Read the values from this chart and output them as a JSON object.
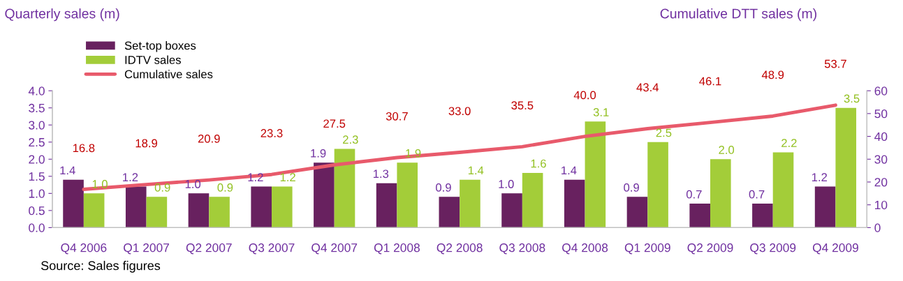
{
  "chart_data": {
    "type": "bar",
    "categories": [
      "Q4 2006",
      "Q1 2007",
      "Q2 2007",
      "Q3 2007",
      "Q4 2007",
      "Q1 2008",
      "Q2 2008",
      "Q3 2008",
      "Q4 2008",
      "Q1 2009",
      "Q2 2009",
      "Q3 2009",
      "Q4 2009"
    ],
    "series": [
      {
        "name": "Set-top boxes",
        "color": "#68215f",
        "values": [
          1.4,
          1.2,
          1.0,
          1.2,
          1.9,
          1.3,
          0.9,
          1.0,
          1.4,
          0.9,
          0.7,
          0.7,
          1.2
        ],
        "value_labels": [
          "1.4",
          "1.2",
          "1.0",
          "1.2",
          "1.9",
          "1.3",
          "0.9",
          "1.0",
          "1.4",
          "0.9",
          "0.7",
          "0.7",
          "1.2"
        ]
      },
      {
        "name": "IDTV sales",
        "color": "#a3cd39",
        "values": [
          1.0,
          0.9,
          0.9,
          1.2,
          2.3,
          1.9,
          1.4,
          1.6,
          3.1,
          2.5,
          2.0,
          2.2,
          3.5
        ],
        "value_labels": [
          "1.0",
          "0.9",
          "0.9",
          "1.2",
          "2.3",
          "1.9",
          "1.4",
          "1.6",
          "3.1",
          "2.5",
          "2.0",
          "2.2",
          "3.5"
        ]
      },
      {
        "name": "Cumulative sales",
        "type": "line",
        "axis": "y2",
        "color": "#e85a6b",
        "values": [
          16.8,
          18.9,
          20.9,
          23.3,
          27.5,
          30.7,
          33.0,
          35.5,
          40.0,
          43.4,
          46.1,
          48.9,
          53.7
        ],
        "value_labels": [
          "16.8",
          "18.9",
          "20.9",
          "23.3",
          "27.5",
          "30.7",
          "33.0",
          "35.5",
          "40.0",
          "43.4",
          "46.1",
          "48.9",
          "53.7"
        ]
      }
    ],
    "ylabel": "Quarterly sales (m)",
    "y2label": "Cumulative DTT sales (m)",
    "ylim": [
      0,
      4
    ],
    "yticks": [
      {
        "value": 0,
        "label": "0.0"
      },
      {
        "value": 0.5,
        "label": "0.5"
      },
      {
        "value": 1,
        "label": "1.0"
      },
      {
        "value": 1.5,
        "label": "1.5"
      },
      {
        "value": 2,
        "label": "2.0"
      },
      {
        "value": 2.5,
        "label": "2.5"
      },
      {
        "value": 3,
        "label": "3.0"
      },
      {
        "value": 3.5,
        "label": "3.5"
      },
      {
        "value": 4,
        "label": "4.0"
      }
    ],
    "y2lim": [
      0,
      60
    ],
    "y2ticks": [
      0,
      10,
      20,
      30,
      40,
      50,
      60
    ],
    "legend": "top left",
    "grid": false,
    "annotations": [
      "Source: Sales figures"
    ]
  }
}
